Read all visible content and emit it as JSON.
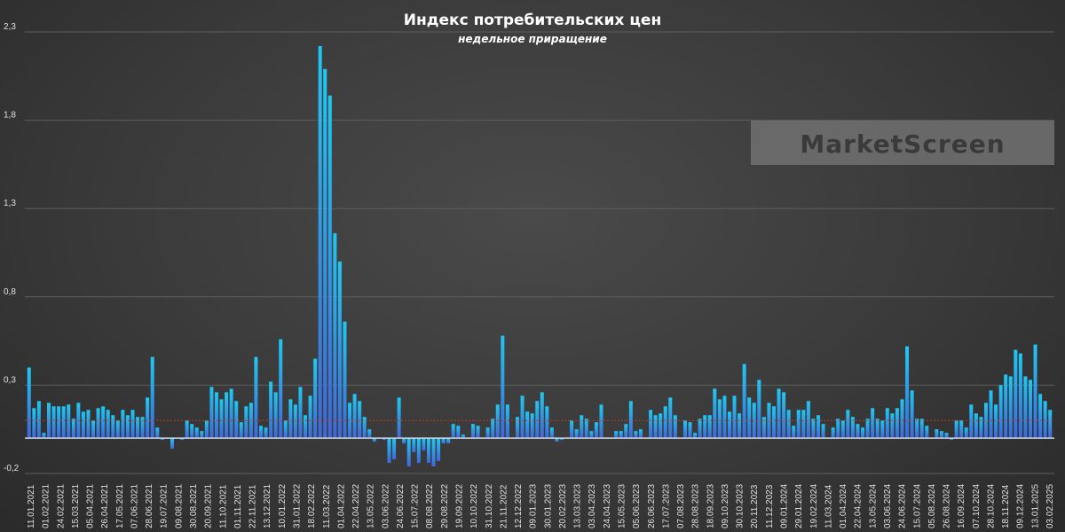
{
  "chart_data": {
    "type": "bar",
    "title": "Индекс потребительских цен",
    "subtitle": "недельное приращение",
    "xlabel": "",
    "ylabel": "",
    "ylim": [
      -0.2,
      2.3
    ],
    "yticks": [
      -0.2,
      0.3,
      0.8,
      1.3,
      1.8,
      2.3
    ],
    "ytick_labels": [
      "-0,2",
      "0,3",
      "0,8",
      "1,3",
      "1,8",
      "2,3"
    ],
    "grid": true,
    "reference_line": 0.1,
    "reference_line_color": "#c0392b",
    "bar_color_top": "#1ec8f0",
    "bar_color_bottom": "#3a6cd6",
    "x_tick_labels": [
      "11.01.2021",
      "01.02.2021",
      "24.02.2021",
      "15.03.2021",
      "05.04.2021",
      "26.04.2021",
      "17.05.2021",
      "07.06.2021",
      "28.06.2021",
      "19.07.2021",
      "09.08.2021",
      "30.08.2021",
      "20.09.2021",
      "11.10.2021",
      "01.11.2021",
      "22.11.2021",
      "13.12.2021",
      "10.01.2022",
      "31.01.2022",
      "18.02.2022",
      "11.03.2022",
      "01.04.2022",
      "22.04.2022",
      "13.05.2022",
      "03.06.2022",
      "24.06.2022",
      "15.07.2022",
      "08.08.2022",
      "29.08.2022",
      "19.09.2022",
      "10.10.2022",
      "31.10.2022",
      "21.11.2022",
      "12.12.2022",
      "09.01.2023",
      "30.01.2023",
      "20.02.2023",
      "13.03.2023",
      "03.04.2023",
      "24.04.2023",
      "15.05.2023",
      "05.06.2023",
      "26.06.2023",
      "17.07.2023",
      "07.08.2023",
      "28.08.2023",
      "18.09.2023",
      "09.10.2023",
      "30.10.2023",
      "20.11.2023",
      "11.12.2023",
      "09.01.2024",
      "29.01.2024",
      "19.02.2024",
      "11.03.2024",
      "01.04.2024",
      "22.04.2024",
      "13.05.2024",
      "03.06.2024",
      "24.06.2024",
      "15.07.2024",
      "05.08.2024",
      "26.08.2024",
      "16.09.2024",
      "07.10.2024",
      "28.10.2024",
      "18.11.2024",
      "09.12.2024",
      "13.01.2025",
      "03.02.2025"
    ],
    "values": [
      0.4,
      0.17,
      0.21,
      0.03,
      0.2,
      0.18,
      0.18,
      0.18,
      0.19,
      0.11,
      0.2,
      0.15,
      0.16,
      0.1,
      0.17,
      0.18,
      0.16,
      0.13,
      0.1,
      0.16,
      0.13,
      0.16,
      0.12,
      0.12,
      0.23,
      0.46,
      0.06,
      -0.01,
      0.0,
      -0.06,
      0.0,
      -0.01,
      0.1,
      0.08,
      0.06,
      0.04,
      0.1,
      0.29,
      0.26,
      0.22,
      0.26,
      0.28,
      0.21,
      0.09,
      0.18,
      0.2,
      0.46,
      0.07,
      0.06,
      0.32,
      0.26,
      0.56,
      0.1,
      0.22,
      0.19,
      0.29,
      0.13,
      0.24,
      0.45,
      2.22,
      2.09,
      1.94,
      1.16,
      1.0,
      0.66,
      0.2,
      0.25,
      0.21,
      0.12,
      0.05,
      -0.02,
      0.0,
      -0.01,
      -0.14,
      -0.12,
      0.23,
      -0.03,
      -0.16,
      -0.08,
      -0.14,
      -0.07,
      -0.14,
      -0.16,
      -0.13,
      -0.03,
      -0.03,
      0.08,
      0.07,
      0.02,
      0.0,
      0.08,
      0.07,
      0.0,
      0.06,
      0.11,
      0.19,
      0.58,
      0.19,
      0.0,
      0.12,
      0.24,
      0.15,
      0.14,
      0.21,
      0.26,
      0.18,
      0.06,
      -0.02,
      -0.01,
      0.0,
      0.1,
      0.05,
      0.13,
      0.11,
      0.04,
      0.09,
      0.19,
      0.0,
      0.0,
      0.04,
      0.04,
      0.08,
      0.21,
      0.04,
      0.05,
      0.0,
      0.16,
      0.13,
      0.14,
      0.18,
      0.23,
      0.13,
      0.0,
      0.1,
      0.09,
      0.03,
      0.11,
      0.13,
      0.13,
      0.28,
      0.22,
      0.24,
      0.15,
      0.24,
      0.14,
      0.42,
      0.23,
      0.2,
      0.33,
      0.12,
      0.2,
      0.18,
      0.28,
      0.26,
      0.16,
      0.07,
      0.16,
      0.16,
      0.21,
      0.11,
      0.13,
      0.08,
      0.0,
      0.06,
      0.11,
      0.1,
      0.16,
      0.12,
      0.08,
      0.06,
      0.11,
      0.17,
      0.11,
      0.1,
      0.17,
      0.14,
      0.17,
      0.22,
      0.52,
      0.27,
      0.11,
      0.11,
      0.07,
      0.0,
      0.05,
      0.04,
      0.03,
      -0.01,
      0.1,
      0.1,
      0.06,
      0.19,
      0.14,
      0.12,
      0.2,
      0.27,
      0.19,
      0.3,
      0.36,
      0.35,
      0.5,
      0.48,
      0.35,
      0.33,
      0.53,
      0.25,
      0.21,
      0.16
    ]
  },
  "watermark": {
    "text": "MarketScreen"
  }
}
